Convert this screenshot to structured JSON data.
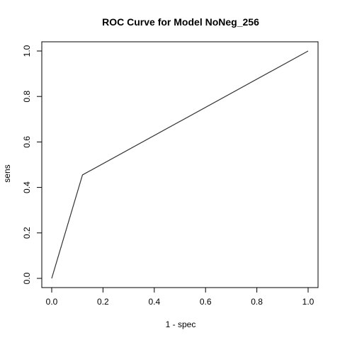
{
  "chart_data": {
    "type": "line",
    "title": "ROC Curve for Model NoNeg_256",
    "xlabel": "1 - spec",
    "ylabel": "sens",
    "xlim": [
      0,
      1
    ],
    "ylim": [
      0,
      1
    ],
    "xticks": [
      "0.0",
      "0.2",
      "0.4",
      "0.6",
      "0.8",
      "1.0"
    ],
    "yticks": [
      "0.0",
      "0.2",
      "0.4",
      "0.6",
      "0.8",
      "1.0"
    ],
    "grid": false,
    "series": [
      {
        "x": [
          0.0,
          0.12,
          1.0
        ],
        "y": [
          0.0,
          0.455,
          1.0
        ],
        "color": "#333333"
      }
    ]
  }
}
